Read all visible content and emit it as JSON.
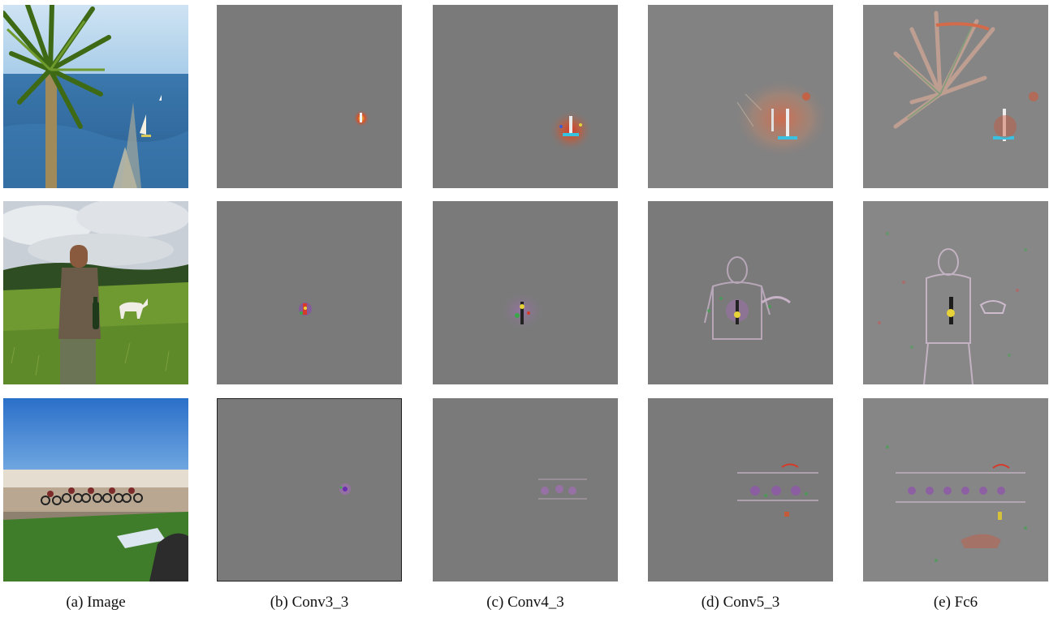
{
  "figure": {
    "captions": [
      "(a) Image",
      "(b) Conv3_3",
      "(c) Conv4_3",
      "(d) Conv5_3",
      "(e) Fc6"
    ],
    "rows": [
      {
        "subject": "palm tree and sailboat at sea",
        "panels": [
          "photo",
          "conv3_3 saliency",
          "conv4_3 saliency",
          "conv5_3 saliency",
          "fc6 saliency"
        ]
      },
      {
        "subject": "man with bottle and goat on a hill",
        "panels": [
          "photo",
          "conv3_3 saliency",
          "conv4_3 saliency",
          "conv5_3 saliency",
          "fc6 saliency"
        ]
      },
      {
        "subject": "cyclists on a velodrome track",
        "panels": [
          "photo",
          "conv3_3 saliency",
          "conv4_3 saliency",
          "conv5_3 saliency",
          "fc6 saliency"
        ]
      }
    ],
    "colors": {
      "saliency_background": "#7a7a7a",
      "sky": "#9cc6ea",
      "sea": "#2f6fa6",
      "grass": "#5f8a2e"
    }
  }
}
